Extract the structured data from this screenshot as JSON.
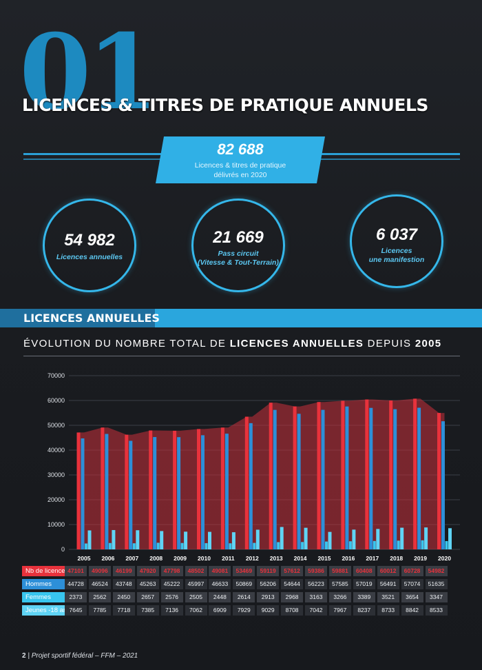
{
  "header": {
    "section_number": "01",
    "title": "LICENCES & TITRES DE PRATIQUE ANNUELS"
  },
  "hero": {
    "value": "82 688",
    "label_line1": "Licences & titres de pratique",
    "label_line2": "délivrés en 2020"
  },
  "stats": [
    {
      "value": "54 982",
      "label_line1": "Licences annuelles",
      "label_line2": ""
    },
    {
      "value": "21 669",
      "label_line1": "Pass circuit",
      "label_line2": "(Vitesse & Tout-Terrain)"
    },
    {
      "value": "6 037",
      "label_line1": "Licences",
      "label_line2": "une manifestion"
    }
  ],
  "section_band": "LICENCES ANNUELLES",
  "subtitle": {
    "part1": "ÉVOLUTION DU NOMBRE TOTAL DE ",
    "part2": "LICENCES ANNUELLES",
    "part3": " DEPUIS ",
    "part4": "2005"
  },
  "colors": {
    "total": "#e8323c",
    "hommes": "#2d8fd8",
    "femmes": "#38c6ef",
    "jeunes": "#5fd4f5",
    "area": "#c9303a"
  },
  "chart_data": {
    "type": "bar",
    "categories": [
      "2005",
      "2006",
      "2007",
      "2008",
      "2009",
      "2010",
      "2011",
      "2012",
      "2013",
      "2014",
      "2015",
      "2016",
      "2017",
      "2018",
      "2019",
      "2020"
    ],
    "ylim": [
      0,
      70000
    ],
    "yticks": [
      "0",
      "10000",
      "20000",
      "30000",
      "40000",
      "50000",
      "60000",
      "70000"
    ],
    "grid": true,
    "series": [
      {
        "name": "Nb de licences",
        "values": [
          47101,
          49096,
          46199,
          47920,
          47798,
          48502,
          49081,
          53469,
          59119,
          57612,
          59386,
          59881,
          60408,
          60012,
          60728,
          54982
        ]
      },
      {
        "name": "Hommes",
        "values": [
          44728,
          46524,
          43748,
          45263,
          45222,
          45997,
          46633,
          50869,
          56206,
          54644,
          56223,
          57585,
          57019,
          56491,
          57074,
          51635
        ]
      },
      {
        "name": "Femmes",
        "values": [
          2373,
          2562,
          2450,
          2657,
          2576,
          2505,
          2448,
          2614,
          2913,
          2968,
          3163,
          3266,
          3389,
          3521,
          3654,
          3347
        ]
      },
      {
        "name": "Jeunes -18 ans",
        "values": [
          7645,
          7785,
          7718,
          7385,
          7136,
          7062,
          6909,
          7929,
          9029,
          8708,
          7042,
          7967,
          8237,
          8733,
          8842,
          8533
        ]
      }
    ]
  },
  "footer": {
    "page": "2",
    "separator": "|",
    "text": " Projet sportif fédéral – FFM – 2021"
  }
}
